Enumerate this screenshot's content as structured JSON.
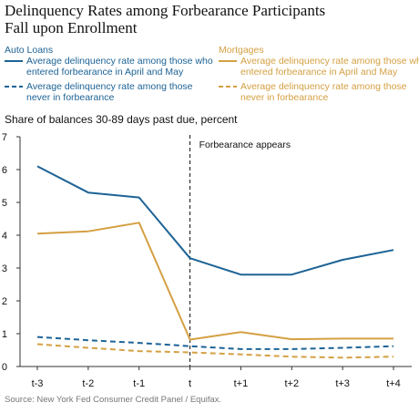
{
  "title_lines": [
    "Delinquency Rates among Forbearance Participants",
    "Fall upon Enrollment"
  ],
  "colors": {
    "auto": "#1d6396",
    "mortgage": "#d4a043",
    "text": "#111111",
    "source": "#777777"
  },
  "legend": {
    "auto": {
      "title": "Auto Loans",
      "solid_lines": [
        "Average delinquency rate among those who",
        "entered forbearance in April and May"
      ],
      "dashed_lines": [
        "Average delinquency rate among those",
        "never in forbearance"
      ]
    },
    "mortgage": {
      "title": "Mortgages",
      "solid_lines": [
        "Average delinquency rate among those who",
        "entered forbearance in April and May"
      ],
      "dashed_lines": [
        "Average delinquency rate among those",
        "never in forbearance"
      ]
    }
  },
  "subtitle": "Share of balances 30-89 days past due, percent",
  "source": "Source: New York Fed Consumer Credit Panel / Equifax.",
  "chart_data": {
    "type": "line",
    "categories": [
      "t-3",
      "t-2",
      "t-1",
      "t",
      "t+1",
      "t+2",
      "t+3",
      "t+4"
    ],
    "ylim": [
      0,
      7
    ],
    "yticks": [
      0,
      1,
      2,
      3,
      4,
      5,
      6,
      7
    ],
    "grid": false,
    "annotation": {
      "category": "t",
      "text": "Forbearance appears"
    },
    "series": [
      {
        "group": "auto",
        "style": "solid",
        "values": [
          6.1,
          5.3,
          5.15,
          3.3,
          2.8,
          2.8,
          3.25,
          3.55
        ]
      },
      {
        "group": "auto",
        "style": "dashed",
        "values": [
          0.9,
          0.8,
          0.72,
          0.62,
          0.53,
          0.53,
          0.57,
          0.62
        ]
      },
      {
        "group": "mortgage",
        "style": "solid",
        "values": [
          4.05,
          4.12,
          4.38,
          0.82,
          1.05,
          0.83,
          0.85,
          0.85
        ]
      },
      {
        "group": "mortgage",
        "style": "dashed",
        "values": [
          0.68,
          0.57,
          0.47,
          0.43,
          0.37,
          0.3,
          0.27,
          0.3
        ]
      }
    ]
  }
}
